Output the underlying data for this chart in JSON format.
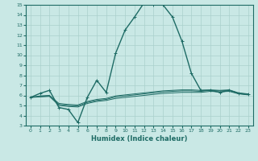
{
  "xlabel": "Humidex (Indice chaleur)",
  "xlim": [
    -0.5,
    23.5
  ],
  "ylim": [
    3,
    15
  ],
  "xticks": [
    0,
    1,
    2,
    3,
    4,
    5,
    6,
    7,
    8,
    9,
    10,
    11,
    12,
    13,
    14,
    15,
    16,
    17,
    18,
    19,
    20,
    21,
    22,
    23
  ],
  "yticks": [
    3,
    4,
    5,
    6,
    7,
    8,
    9,
    10,
    11,
    12,
    13,
    14,
    15
  ],
  "bg_color": "#c9e8e5",
  "line_color": "#1e6b65",
  "grid_color": "#aad0cc",
  "lines": [
    {
      "x": [
        0,
        1,
        2,
        3,
        4,
        5,
        6,
        7,
        8,
        9,
        10,
        11,
        12,
        13,
        14,
        15,
        16,
        17,
        18,
        19,
        20,
        21,
        22,
        23
      ],
      "y": [
        5.8,
        6.2,
        6.5,
        4.8,
        4.6,
        3.3,
        5.8,
        7.5,
        6.3,
        10.2,
        12.5,
        13.8,
        15.2,
        15.0,
        15.0,
        13.8,
        11.4,
        8.2,
        6.5,
        6.5,
        6.3,
        6.5,
        6.2,
        6.1
      ],
      "marker": true,
      "lw": 1.0
    },
    {
      "x": [
        0,
        1,
        2,
        3,
        4,
        5,
        6,
        7,
        8,
        9,
        10,
        11,
        12,
        13,
        14,
        15,
        16,
        17,
        18,
        19,
        20,
        21,
        22,
        23
      ],
      "y": [
        5.8,
        5.85,
        5.9,
        5.0,
        4.9,
        4.85,
        5.2,
        5.4,
        5.5,
        5.7,
        5.8,
        5.9,
        6.0,
        6.1,
        6.2,
        6.25,
        6.3,
        6.3,
        6.3,
        6.4,
        6.35,
        6.4,
        6.15,
        6.05
      ],
      "marker": false,
      "lw": 0.7
    },
    {
      "x": [
        0,
        1,
        2,
        3,
        4,
        5,
        6,
        7,
        8,
        9,
        10,
        11,
        12,
        13,
        14,
        15,
        16,
        17,
        18,
        19,
        20,
        21,
        22,
        23
      ],
      "y": [
        5.8,
        5.9,
        5.95,
        5.1,
        5.0,
        4.95,
        5.3,
        5.5,
        5.6,
        5.85,
        5.95,
        6.05,
        6.15,
        6.25,
        6.35,
        6.4,
        6.45,
        6.45,
        6.4,
        6.5,
        6.45,
        6.5,
        6.2,
        6.1
      ],
      "marker": false,
      "lw": 0.7
    },
    {
      "x": [
        0,
        1,
        2,
        3,
        4,
        5,
        6,
        7,
        8,
        9,
        10,
        11,
        12,
        13,
        14,
        15,
        16,
        17,
        18,
        19,
        20,
        21,
        22,
        23
      ],
      "y": [
        5.8,
        5.95,
        6.0,
        5.2,
        5.1,
        5.05,
        5.4,
        5.6,
        5.7,
        5.95,
        6.05,
        6.15,
        6.25,
        6.35,
        6.45,
        6.5,
        6.55,
        6.55,
        6.5,
        6.55,
        6.5,
        6.55,
        6.25,
        6.15
      ],
      "marker": false,
      "lw": 0.7
    }
  ]
}
